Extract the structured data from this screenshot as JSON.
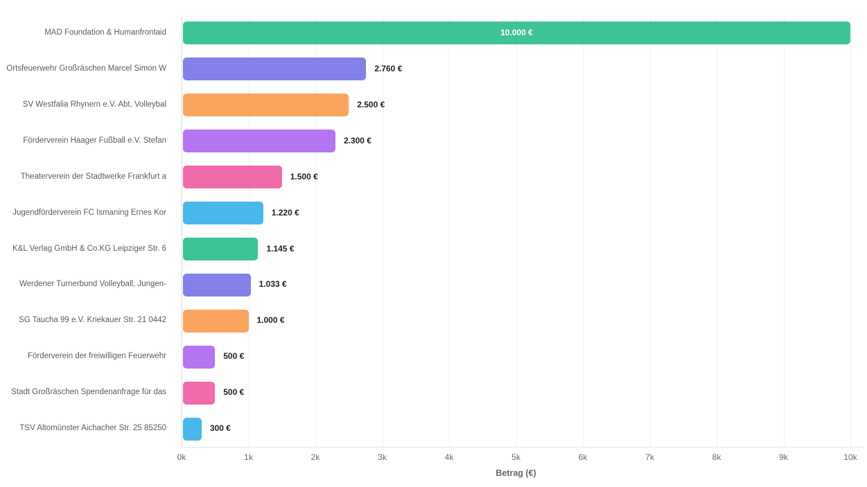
{
  "chart_data": {
    "type": "bar",
    "orientation": "horizontal",
    "title": "",
    "xlabel": "Betrag (€)",
    "ylabel": "",
    "xlim": [
      0,
      10000
    ],
    "grid": "vertical-light",
    "legend": "none",
    "categories": [
      "MAD Foundation & Humanfrontaid",
      "Ortsfeuerwehr Großräschen Marcel Simon W",
      "SV Westfalia Rhynern e.V. Abt. Volleybal",
      "Förderverein Haager Fußball e.V. Stefan",
      "Theaterverein der Stadtwerke Frankfurt a",
      "Jugendförderverein FC Ismaning Ernes Kor",
      "K&L Verlag GmbH & Co.KG Leipziger Str. 6",
      "Werdener Turnerbund Volleyball,  Jungen-",
      "SG Taucha 99 e.V. Kriekauer Str. 21 0442",
      "Förderverein der freiwilligen Feuerwehr",
      "Stadt Großräschen Spendenanfrage für das",
      "TSV Altomünster Aichacher Str. 25 85250"
    ],
    "values": [
      10000,
      2760,
      2500,
      2300,
      1500,
      1220,
      1145,
      1033,
      1000,
      500,
      500,
      300
    ],
    "value_labels": [
      "10.000 €",
      "2.760 €",
      "2.500 €",
      "2.300 €",
      "1.500 €",
      "1.220 €",
      "1.145 €",
      "1.033 €",
      "1.000 €",
      "500 €",
      "500 €",
      "300 €"
    ],
    "bar_colors": [
      "#3EC494",
      "#8380E9",
      "#F9A55E",
      "#B574F0",
      "#F06BA9",
      "#47B8E9",
      "#3EC494",
      "#8380E9",
      "#F9A55E",
      "#B574F0",
      "#F06BA9",
      "#47B8E9"
    ],
    "x_ticks": [
      "0k",
      "1k",
      "2k",
      "3k",
      "4k",
      "5k",
      "6k",
      "7k",
      "8k",
      "9k",
      "10k"
    ]
  },
  "palette": {
    "gridline": "#f0f0f0",
    "axis_line": "#d9d9d9",
    "category_text": "#5c5c5c",
    "value_text": "#1f1f1f",
    "inside_value_text": "#ffffff",
    "tick_text": "#6b6b6b",
    "axis_title_text": "#666666",
    "background": "#ffffff"
  }
}
